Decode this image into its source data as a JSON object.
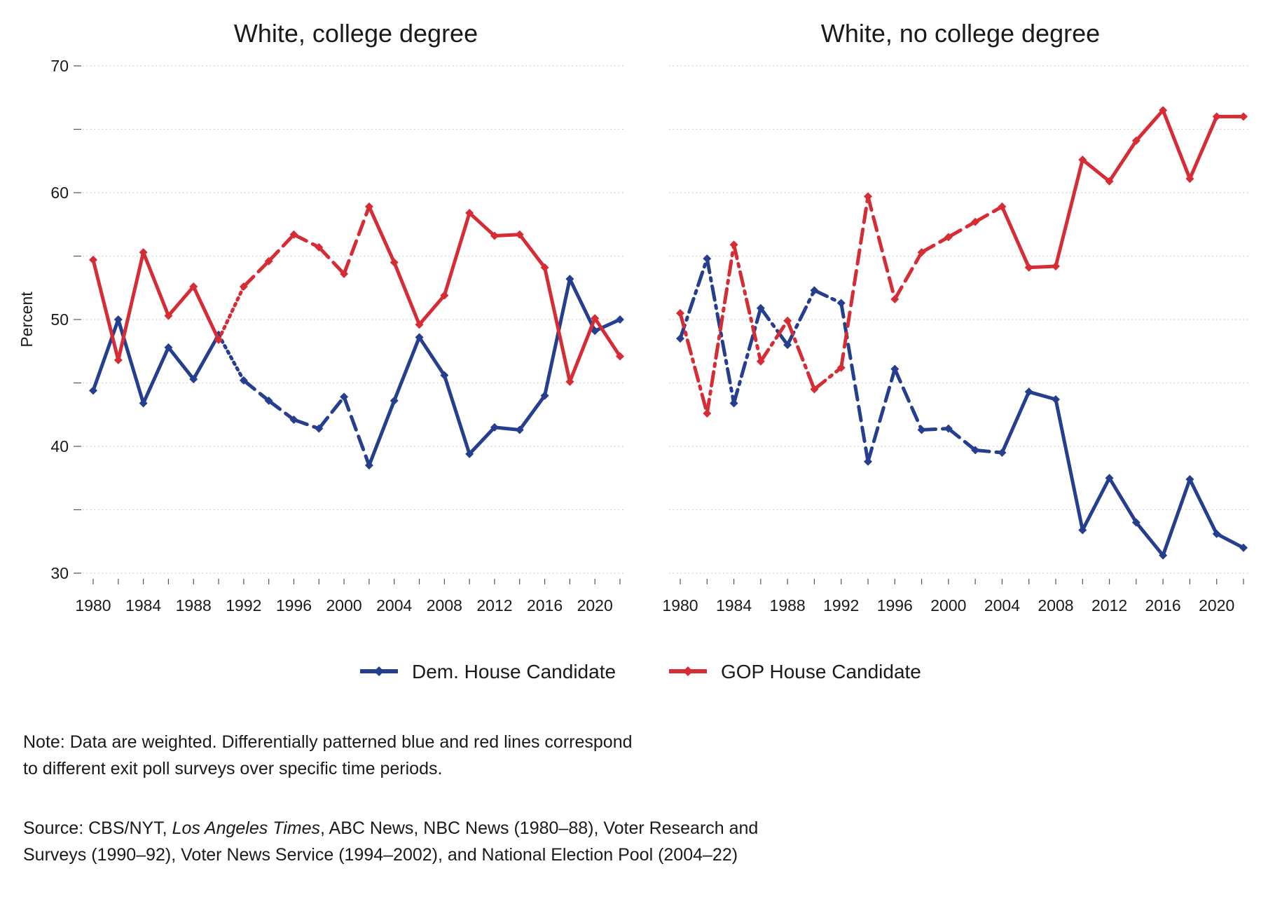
{
  "chart_data": {
    "type": "line",
    "ylabel": "Percent",
    "ylim": [
      30,
      70
    ],
    "yticks": [
      30,
      40,
      50,
      60,
      70
    ],
    "xlim": [
      1980,
      2022
    ],
    "xtick_labels": [
      "1980",
      "1984",
      "1988",
      "1992",
      "1996",
      "2000",
      "2004",
      "2008",
      "2012",
      "2016",
      "2020"
    ],
    "grid": "horizontal dotted",
    "legend_position": "bottom",
    "legend": [
      "Dem. House Candidate",
      "GOP House Candidate"
    ],
    "colors": {
      "dem": "#253f8e",
      "gop": "#d62c36"
    },
    "panels": [
      {
        "title": "White, college degree",
        "series": [
          {
            "name": "Dem. House Candidate",
            "color": "#253f8e",
            "x": [
              1980,
              1982,
              1984,
              1986,
              1988,
              1990,
              1992,
              1994,
              1996,
              1998,
              2000,
              2002,
              2004,
              2006,
              2008,
              2010,
              2012,
              2014,
              2016,
              2018,
              2020,
              2022
            ],
            "y": [
              44.4,
              50,
              43.4,
              47.8,
              45.3,
              48.8,
              45.2,
              43.6,
              42.1,
              41.4,
              43.9,
              38.5,
              43.6,
              48.6,
              45.6,
              39.4,
              41.5,
              41.3,
              44,
              53.2,
              49.1,
              50
            ]
          },
          {
            "name": "GOP House Candidate",
            "color": "#d62c36",
            "x": [
              1980,
              1982,
              1984,
              1986,
              1988,
              1990,
              1992,
              1994,
              1996,
              1998,
              2000,
              2002,
              2004,
              2006,
              2008,
              2010,
              2012,
              2014,
              2016,
              2018,
              2020,
              2022
            ],
            "y": [
              54.7,
              46.8,
              55.3,
              50.3,
              52.6,
              48.4,
              52.6,
              54.6,
              56.7,
              55.7,
              53.6,
              58.9,
              54.5,
              49.6,
              51.9,
              58.4,
              56.6,
              56.7,
              54.1,
              45.1,
              50.1,
              47.1
            ]
          }
        ]
      },
      {
        "title": "White, no college degree",
        "series": [
          {
            "name": "Dem. House Candidate",
            "color": "#253f8e",
            "x": [
              1980,
              1982,
              1984,
              1986,
              1988,
              1990,
              1992,
              1994,
              1996,
              1998,
              2000,
              2002,
              2004,
              2006,
              2008,
              2010,
              2012,
              2014,
              2016,
              2018,
              2020,
              2022
            ],
            "y": [
              48.5,
              54.8,
              43.4,
              50.9,
              48,
              52.3,
              51.3,
              38.8,
              46.1,
              41.3,
              41.4,
              39.7,
              39.5,
              44.3,
              43.7,
              33.4,
              37.5,
              34,
              31.4,
              37.4,
              33.1,
              32
            ]
          },
          {
            "name": "GOP House Candidate",
            "color": "#d62c36",
            "x": [
              1980,
              1982,
              1984,
              1986,
              1988,
              1990,
              1992,
              1994,
              1996,
              1998,
              2000,
              2002,
              2004,
              2006,
              2008,
              2010,
              2012,
              2014,
              2016,
              2018,
              2020,
              2022
            ],
            "y": [
              50.5,
              42.6,
              55.9,
              46.7,
              49.9,
              44.5,
              46.2,
              59.7,
              51.6,
              55.3,
              56.5,
              57.7,
              58.9,
              54.1,
              54.2,
              62.6,
              60.9,
              64.1,
              66.5,
              61.1,
              66,
              66
            ]
          }
        ]
      }
    ]
  },
  "notes": {
    "note_line1": "Note: Data are weighted. Differentially patterned blue and red lines correspond",
    "note_line2": "to different exit poll surveys over specific time periods.",
    "source_line1_prefix": "Source: CBS/NYT, ",
    "source_line1_italic": "Los Angeles Times",
    "source_line1_suffix": ", ABC News, NBC News (1980–88), Voter Research and",
    "source_line2": "Surveys (1990–92), Voter News Service (1994–2002), and National Election Pool (2004–22)"
  }
}
